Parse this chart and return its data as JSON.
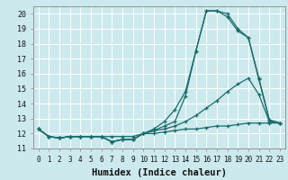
{
  "xlabel": "Humidex (Indice chaleur)",
  "bg_color": "#cce9ed",
  "grid_color": "#b0d4d8",
  "line_color": "#1a6b6b",
  "xmin": -0.5,
  "xmax": 23.5,
  "ymin": 11,
  "ymax": 20.5,
  "yticks": [
    11,
    12,
    13,
    14,
    15,
    16,
    17,
    18,
    19,
    20
  ],
  "xtick_labels": [
    "0",
    "1",
    "2",
    "3",
    "4",
    "5",
    "6",
    "7",
    "8",
    "9",
    "10",
    "11",
    "12",
    "13",
    "14",
    "15",
    "16",
    "17",
    "18",
    "19",
    "20",
    "21",
    "22",
    "23"
  ],
  "series": [
    {
      "x": [
        0,
        1,
        2,
        3,
        4,
        5,
        6,
        7,
        8,
        9,
        10,
        11,
        12,
        13,
        14,
        15,
        16,
        17,
        18,
        19,
        20,
        21,
        22,
        23
      ],
      "y": [
        12.3,
        11.8,
        11.7,
        11.8,
        11.8,
        11.8,
        11.8,
        11.45,
        11.6,
        11.6,
        12.0,
        12.2,
        12.5,
        12.8,
        14.5,
        17.5,
        20.2,
        20.2,
        20.0,
        19.0,
        18.4,
        15.7,
        12.9,
        12.7
      ]
    },
    {
      "x": [
        0,
        1,
        2,
        3,
        4,
        5,
        6,
        7,
        8,
        9,
        10,
        11,
        12,
        13,
        14,
        15,
        16,
        17,
        18,
        19,
        20,
        21,
        22,
        23
      ],
      "y": [
        12.3,
        11.8,
        11.7,
        11.8,
        11.8,
        11.8,
        11.8,
        11.45,
        11.6,
        11.6,
        12.0,
        12.3,
        12.8,
        13.6,
        14.8,
        17.5,
        20.2,
        20.2,
        19.8,
        18.85,
        18.4,
        15.6,
        12.9,
        12.7
      ]
    },
    {
      "x": [
        0,
        1,
        2,
        3,
        4,
        5,
        6,
        7,
        8,
        9,
        10,
        11,
        12,
        13,
        14,
        15,
        16,
        17,
        18,
        19,
        20,
        21,
        22,
        23
      ],
      "y": [
        12.3,
        11.8,
        11.7,
        11.8,
        11.8,
        11.8,
        11.8,
        11.45,
        11.6,
        11.6,
        12.0,
        12.2,
        12.3,
        12.5,
        12.8,
        13.2,
        13.7,
        14.2,
        14.8,
        15.3,
        15.7,
        14.6,
        12.8,
        12.7
      ]
    },
    {
      "x": [
        0,
        1,
        2,
        3,
        4,
        5,
        6,
        7,
        8,
        9,
        10,
        11,
        12,
        13,
        14,
        15,
        16,
        17,
        18,
        19,
        20,
        21,
        22,
        23
      ],
      "y": [
        12.3,
        11.8,
        11.7,
        11.8,
        11.8,
        11.8,
        11.8,
        11.8,
        11.8,
        11.8,
        12.0,
        12.0,
        12.1,
        12.2,
        12.3,
        12.3,
        12.4,
        12.5,
        12.5,
        12.6,
        12.7,
        12.7,
        12.7,
        12.7
      ]
    }
  ]
}
